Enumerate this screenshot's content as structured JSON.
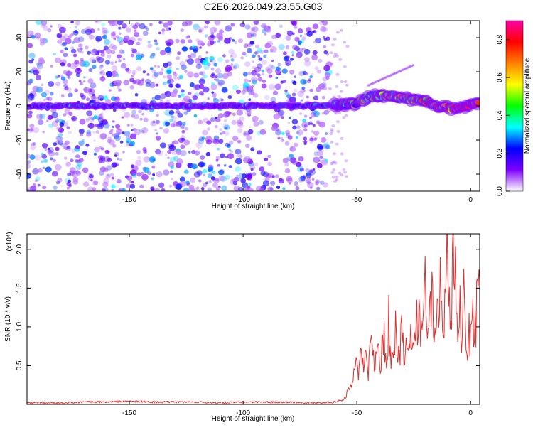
{
  "title": "C2E6.2026.049.23.55.G03",
  "chart_data": [
    {
      "type": "heatmap",
      "xlabel": "Height of straight line (km)",
      "ylabel": "Frequency (Hz)",
      "xlim": [
        -195,
        4
      ],
      "ylim": [
        -50,
        50
      ],
      "xticks": [
        -150,
        -100,
        -50,
        0
      ],
      "xtick_labels": [
        "-150",
        "-100",
        "-50",
        "0"
      ],
      "yticks": [
        -40,
        -20,
        0,
        20,
        40
      ],
      "ytick_labels": [
        "-40",
        "-20",
        "0",
        "20",
        "40"
      ],
      "colorbar": {
        "label": "Normalized spectral amplitude",
        "range": [
          0,
          0.9
        ],
        "ticks": [
          0.0,
          0.2,
          0.4,
          0.6,
          0.8
        ],
        "tick_labels": [
          "0.0",
          "0.2",
          "0.4",
          "0.6",
          "0.8"
        ],
        "colormap": [
          "#ffffff",
          "#7f00ff",
          "#0000ff",
          "#00ffff",
          "#00ff00",
          "#ffff00",
          "#ff8000",
          "#ff0000",
          "#ff00aa"
        ]
      },
      "features": {
        "noise_band": {
          "x_from": -195,
          "x_to": -62,
          "y_range": [
            -50,
            50
          ],
          "level": 0.15
        },
        "carrier_line": [
          {
            "x": -195,
            "y": 0
          },
          {
            "x": -100,
            "y": 0
          },
          {
            "x": -75,
            "y": 0
          },
          {
            "x": -62,
            "y": 0
          },
          {
            "x": -55,
            "y": 1
          },
          {
            "x": -50,
            "y": 1
          },
          {
            "x": -45,
            "y": 5
          },
          {
            "x": -40,
            "y": 6
          },
          {
            "x": -35,
            "y": 6
          },
          {
            "x": -30,
            "y": 5
          },
          {
            "x": -25,
            "y": 4
          },
          {
            "x": -20,
            "y": 3
          },
          {
            "x": -15,
            "y": 0
          },
          {
            "x": -10,
            "y": -1
          },
          {
            "x": -5,
            "y": -2
          },
          {
            "x": 0,
            "y": 1
          },
          {
            "x": 4,
            "y": 1
          }
        ],
        "peak_level": 0.9
      }
    },
    {
      "type": "line",
      "xlabel": "Height of straight line (km)",
      "ylabel": "SNR (10 * v/v)",
      "y_multiplier_label": "(x10⁴)",
      "xlim": [
        -195,
        4
      ],
      "ylim": [
        0,
        2.2
      ],
      "xticks": [
        -150,
        -100,
        -50,
        0
      ],
      "xtick_labels": [
        "-150",
        "-100",
        "-50",
        "0"
      ],
      "yticks": [
        0.5,
        1.0,
        1.5,
        2.0
      ],
      "ytick_labels": [
        "0.5",
        "1.0",
        "1.5",
        "2.0"
      ],
      "series": [
        {
          "color": "#e03030",
          "x": [
            -195,
            -180,
            -170,
            -160,
            -150,
            -140,
            -130,
            -120,
            -110,
            -100,
            -90,
            -80,
            -70,
            -60,
            -56,
            -54,
            -52,
            -51,
            -50,
            -49,
            -48,
            -47,
            -46,
            -45,
            -44,
            -43,
            -42,
            -41,
            -40,
            -39,
            -38,
            -37,
            -36,
            -35,
            -34,
            -33,
            -32,
            -31,
            -30,
            -29,
            -28,
            -27,
            -26,
            -25,
            -24,
            -23,
            -22,
            -21,
            -20,
            -19,
            -18,
            -17,
            -16,
            -15,
            -14,
            -13,
            -12,
            -11,
            -10,
            -9,
            -8,
            -7,
            -6,
            -5,
            -4,
            -3,
            -2,
            -1,
            0,
            1,
            2,
            3,
            4
          ],
          "values": [
            0.02,
            0.02,
            0.03,
            0.03,
            0.04,
            0.03,
            0.03,
            0.03,
            0.02,
            0.03,
            0.03,
            0.03,
            0.02,
            0.03,
            0.06,
            0.15,
            0.28,
            0.45,
            0.55,
            0.4,
            0.7,
            0.5,
            0.62,
            0.4,
            0.75,
            0.55,
            0.6,
            0.7,
            0.55,
            0.65,
            0.8,
            0.5,
            1.1,
            0.6,
            0.7,
            0.9,
            0.55,
            0.75,
            0.95,
            0.6,
            1.1,
            0.7,
            0.9,
            0.65,
            1.0,
            1.25,
            0.8,
            0.95,
            1.6,
            0.7,
            1.2,
            1.45,
            0.9,
            1.35,
            1.0,
            1.8,
            0.85,
            1.4,
            2.1,
            1.1,
            1.6,
            2.2,
            0.9,
            1.5,
            0.8,
            1.3,
            0.7,
            0.9,
            0.85,
            1.2,
            0.95,
            1.4,
            1.6
          ]
        }
      ]
    }
  ]
}
